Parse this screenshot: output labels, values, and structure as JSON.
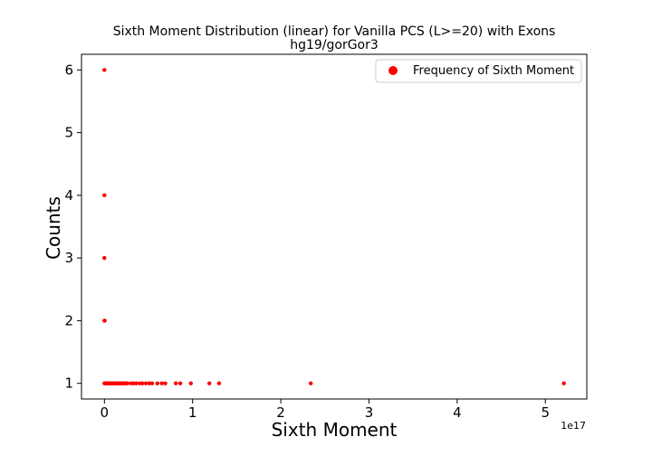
{
  "chart_data": {
    "type": "scatter",
    "title": "Sixth Moment Distribution (linear) for Vanilla PCS (L>=20) with Exons",
    "subtitle": "hg19/gorGor3",
    "xlabel": "Sixth Moment",
    "ylabel": "Counts",
    "x_offset_label": "1e17",
    "xlim": [
      -0.26,
      5.47
    ],
    "ylim": [
      0.75,
      6.25
    ],
    "x_ticks": [
      0,
      1,
      2,
      3,
      4,
      5
    ],
    "x_tick_labels": [
      "0",
      "1",
      "2",
      "3",
      "4",
      "5"
    ],
    "y_ticks": [
      1,
      2,
      3,
      4,
      5,
      6
    ],
    "y_tick_labels": [
      "1",
      "2",
      "3",
      "4",
      "5",
      "6"
    ],
    "grid": false,
    "legend_position": "top-right",
    "marker_color": "#ff0000",
    "series": [
      {
        "name": "Frequency of Sixth Moment",
        "points": [
          {
            "x": 0.0,
            "y": 6
          },
          {
            "x": 0.0,
            "y": 4
          },
          {
            "x": 0.0,
            "y": 3
          },
          {
            "x": 0.0,
            "y": 2
          },
          {
            "x": 0.003,
            "y": 2
          },
          {
            "x": 0.0,
            "y": 1
          },
          {
            "x": 0.01,
            "y": 1
          },
          {
            "x": 0.02,
            "y": 1
          },
          {
            "x": 0.03,
            "y": 1
          },
          {
            "x": 0.04,
            "y": 1
          },
          {
            "x": 0.05,
            "y": 1
          },
          {
            "x": 0.06,
            "y": 1
          },
          {
            "x": 0.07,
            "y": 1
          },
          {
            "x": 0.08,
            "y": 1
          },
          {
            "x": 0.09,
            "y": 1
          },
          {
            "x": 0.1,
            "y": 1
          },
          {
            "x": 0.11,
            "y": 1
          },
          {
            "x": 0.12,
            "y": 1
          },
          {
            "x": 0.13,
            "y": 1
          },
          {
            "x": 0.14,
            "y": 1
          },
          {
            "x": 0.15,
            "y": 1
          },
          {
            "x": 0.16,
            "y": 1
          },
          {
            "x": 0.17,
            "y": 1
          },
          {
            "x": 0.18,
            "y": 1
          },
          {
            "x": 0.19,
            "y": 1
          },
          {
            "x": 0.2,
            "y": 1
          },
          {
            "x": 0.22,
            "y": 1
          },
          {
            "x": 0.24,
            "y": 1
          },
          {
            "x": 0.26,
            "y": 1
          },
          {
            "x": 0.3,
            "y": 1
          },
          {
            "x": 0.33,
            "y": 1
          },
          {
            "x": 0.36,
            "y": 1
          },
          {
            "x": 0.4,
            "y": 1
          },
          {
            "x": 0.43,
            "y": 1
          },
          {
            "x": 0.47,
            "y": 1
          },
          {
            "x": 0.51,
            "y": 1
          },
          {
            "x": 0.54,
            "y": 1
          },
          {
            "x": 0.6,
            "y": 1
          },
          {
            "x": 0.65,
            "y": 1
          },
          {
            "x": 0.69,
            "y": 1
          },
          {
            "x": 0.81,
            "y": 1
          },
          {
            "x": 0.86,
            "y": 1
          },
          {
            "x": 0.98,
            "y": 1
          },
          {
            "x": 1.19,
            "y": 1
          },
          {
            "x": 1.3,
            "y": 1
          },
          {
            "x": 2.34,
            "y": 1
          },
          {
            "x": 5.21,
            "y": 1
          }
        ]
      }
    ]
  }
}
